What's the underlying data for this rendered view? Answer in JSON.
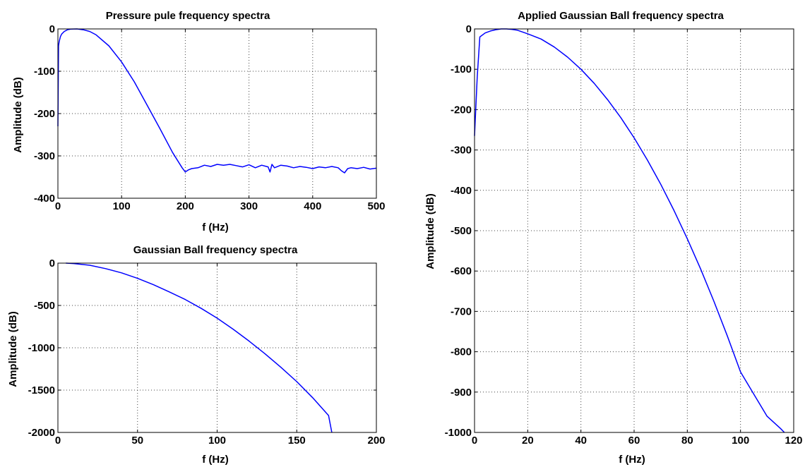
{
  "chart_data": [
    {
      "type": "line",
      "title": "Pressure pule frequency spectra",
      "xlabel": "f (Hz)",
      "ylabel": "Amplitude (dB)",
      "xlim": [
        0,
        500
      ],
      "ylim": [
        -400,
        0
      ],
      "xticks": [
        0,
        100,
        200,
        300,
        400,
        500
      ],
      "yticks": [
        -400,
        -300,
        -200,
        -100,
        0
      ],
      "grid": true,
      "series": [
        {
          "color": "#0000ff",
          "x": [
            0,
            1,
            2,
            4,
            6,
            10,
            15,
            20,
            30,
            40,
            50,
            60,
            80,
            100,
            120,
            140,
            160,
            180,
            195,
            200,
            205,
            210,
            220,
            230,
            240,
            250,
            260,
            270,
            280,
            290,
            300,
            310,
            320,
            330,
            333,
            336,
            340,
            350,
            360,
            370,
            380,
            390,
            400,
            410,
            420,
            430,
            440,
            445,
            450,
            455,
            460,
            470,
            480,
            490,
            500
          ],
          "y": [
            -230,
            -40,
            -30,
            -18,
            -12,
            -6,
            -2,
            -0.5,
            0,
            -2,
            -6,
            -14,
            -40,
            -78,
            -125,
            -180,
            -235,
            -292,
            -328,
            -338,
            -333,
            -330,
            -328,
            -322,
            -325,
            -320,
            -322,
            -320,
            -323,
            -326,
            -321,
            -328,
            -322,
            -326,
            -338,
            -320,
            -328,
            -322,
            -324,
            -328,
            -325,
            -327,
            -330,
            -326,
            -328,
            -325,
            -328,
            -335,
            -340,
            -330,
            -328,
            -330,
            -327,
            -331,
            -329
          ]
        }
      ]
    },
    {
      "type": "line",
      "title": "Gaussian Ball frequency spectra",
      "xlabel": "f (Hz)",
      "ylabel": "Amplitude (dB)",
      "xlim": [
        0,
        200
      ],
      "ylim": [
        -2000,
        0
      ],
      "xticks": [
        0,
        50,
        100,
        150,
        200
      ],
      "yticks": [
        -2000,
        -1500,
        -1000,
        -500,
        0
      ],
      "grid": true,
      "series": [
        {
          "color": "#0000ff",
          "x": [
            5,
            10,
            20,
            30,
            40,
            50,
            60,
            70,
            80,
            90,
            100,
            110,
            120,
            130,
            140,
            150,
            160,
            170,
            172
          ],
          "y": [
            0,
            -5,
            -25,
            -65,
            -115,
            -180,
            -255,
            -340,
            -430,
            -535,
            -650,
            -780,
            -920,
            -1070,
            -1230,
            -1400,
            -1590,
            -1800,
            -2000
          ]
        }
      ]
    },
    {
      "type": "line",
      "title": "Applied Gaussian Ball frequency spectra",
      "xlabel": "f (Hz)",
      "ylabel": "Amplitude (dB)",
      "xlim": [
        0,
        120
      ],
      "ylim": [
        -1000,
        0
      ],
      "xticks": [
        0,
        20,
        40,
        60,
        80,
        100,
        120
      ],
      "yticks": [
        -1000,
        -900,
        -800,
        -700,
        -600,
        -500,
        -400,
        -300,
        -200,
        -100,
        0
      ],
      "grid": true,
      "series": [
        {
          "color": "#0000ff",
          "x": [
            0,
            1,
            2,
            4,
            6,
            8,
            10,
            12,
            14,
            16,
            20,
            25,
            30,
            35,
            40,
            45,
            50,
            55,
            60,
            65,
            70,
            75,
            80,
            85,
            90,
            95,
            100,
            105,
            110,
            115,
            116.5
          ],
          "y": [
            -265,
            -120,
            -20,
            -10,
            -5,
            -2,
            0,
            0,
            -1,
            -3,
            -12,
            -25,
            -45,
            -70,
            -100,
            -135,
            -175,
            -220,
            -270,
            -325,
            -385,
            -450,
            -520,
            -595,
            -675,
            -760,
            -850,
            -905,
            -960,
            -990,
            -1000
          ]
        }
      ]
    }
  ]
}
